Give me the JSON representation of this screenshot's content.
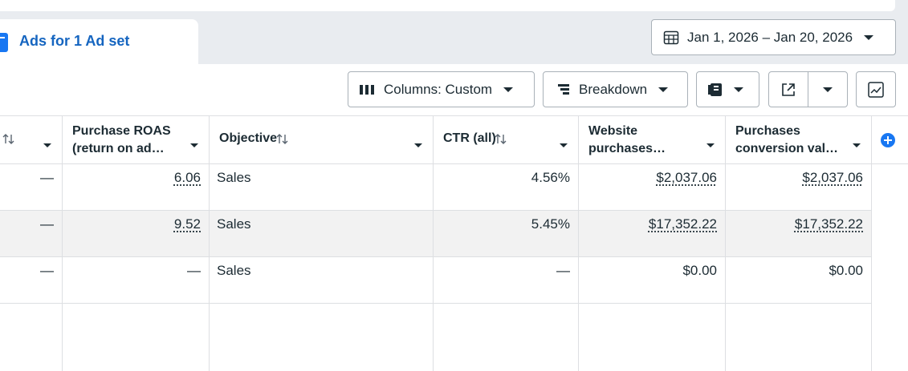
{
  "tab": {
    "label": "Ads for 1 Ad set"
  },
  "date_range": {
    "label": "Jan 1, 2026 – Jan 20, 2026"
  },
  "toolbar": {
    "columns": "Columns: Custom",
    "breakdown": "Breakdown"
  },
  "table": {
    "headers": [
      {
        "lines": []
      },
      {
        "lines": [
          "Purchase ROAS",
          "(return on ad…"
        ]
      },
      {
        "lines": [
          "Objective"
        ]
      },
      {
        "lines": [
          "CTR (all)"
        ]
      },
      {
        "lines": [
          "Website",
          "purchases…"
        ]
      },
      {
        "lines": [
          "Purchases",
          "conversion val…"
        ]
      }
    ],
    "rows": [
      [
        "—",
        "6.06",
        "Sales",
        "4.56%",
        "$2,037.06",
        "$2,037.06"
      ],
      [
        "—",
        "9.52",
        "Sales",
        "5.45%",
        "$17,352.22",
        "$17,352.22"
      ],
      [
        "—",
        "—",
        "Sales",
        "—",
        "$0.00",
        "$0.00"
      ]
    ]
  }
}
